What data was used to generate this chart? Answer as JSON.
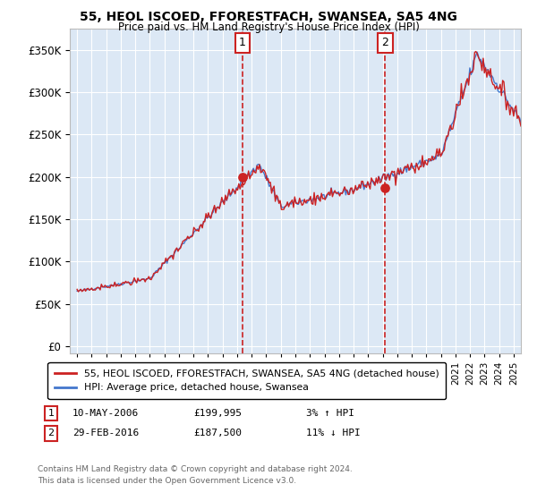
{
  "title": "55, HEOL ISCOED, FFORESTFACH, SWANSEA, SA5 4NG",
  "subtitle": "Price paid vs. HM Land Registry's House Price Index (HPI)",
  "background_color": "#ffffff",
  "plot_bg_color": "#dce8f5",
  "grid_color": "#ffffff",
  "hpi_color": "#4477cc",
  "price_color": "#cc2222",
  "marker_color": "#cc2222",
  "sale1_date": "10-MAY-2006",
  "sale1_price": 199995,
  "sale1_pct": "3% ↑ HPI",
  "sale1_x": 2006.36,
  "sale2_date": "29-FEB-2016",
  "sale2_price": 187500,
  "sale2_pct": "11% ↓ HPI",
  "sale2_x": 2016.17,
  "yticks": [
    0,
    50000,
    100000,
    150000,
    200000,
    250000,
    300000,
    350000
  ],
  "ylim": [
    -8000,
    375000
  ],
  "xlim": [
    1994.5,
    2025.5
  ],
  "xticks": [
    1995,
    1996,
    1997,
    1998,
    1999,
    2000,
    2001,
    2002,
    2003,
    2004,
    2005,
    2006,
    2007,
    2008,
    2009,
    2010,
    2011,
    2012,
    2013,
    2014,
    2015,
    2016,
    2017,
    2018,
    2019,
    2020,
    2021,
    2022,
    2023,
    2024,
    2025
  ],
  "legend_label1": "55, HEOL ISCOED, FFORESTFACH, SWANSEA, SA5 4NG (detached house)",
  "legend_label2": "HPI: Average price, detached house, Swansea",
  "footer1": "Contains HM Land Registry data © Crown copyright and database right 2024.",
  "footer2": "This data is licensed under the Open Government Licence v3.0.",
  "vline_color": "#cc2222",
  "label_box_color": "#ffffff",
  "label_box_edge": "#cc2222"
}
